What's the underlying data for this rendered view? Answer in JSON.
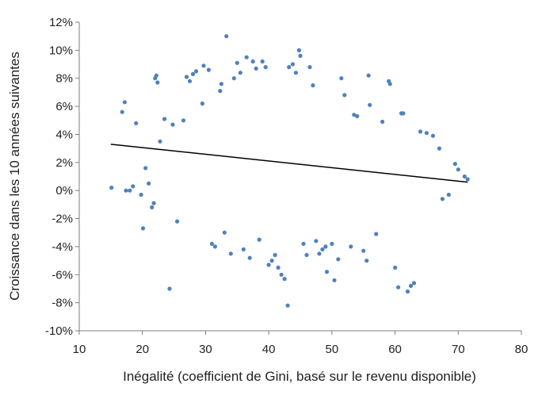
{
  "chart_data": {
    "type": "scatter",
    "title": "",
    "xlabel": "Inégalité (coefficient de Gini, basé sur le revenu disponible)",
    "ylabel": "Croissance dans les 10 années suivantes",
    "xlim": [
      10,
      80
    ],
    "ylim": [
      -10,
      12
    ],
    "x_ticks": [
      10,
      20,
      30,
      40,
      50,
      60,
      70,
      80
    ],
    "y_ticks": [
      -10,
      -8,
      -6,
      -4,
      -2,
      0,
      2,
      4,
      6,
      8,
      10,
      12
    ],
    "y_tick_labels": [
      "-10%",
      "-8%",
      "-6%",
      "-4%",
      "-2%",
      "0%",
      "2%",
      "4%",
      "6%",
      "8%",
      "10%",
      "12%"
    ],
    "grid": false,
    "legend": "none",
    "series": [
      {
        "color": "#4F81BD",
        "points": [
          [
            15.1,
            0.2
          ],
          [
            16.8,
            5.6
          ],
          [
            17.2,
            6.3
          ],
          [
            17.4,
            0.0
          ],
          [
            18.0,
            0.0
          ],
          [
            18.5,
            0.3
          ],
          [
            19.0,
            4.8
          ],
          [
            19.8,
            -0.3
          ],
          [
            20.1,
            -2.7
          ],
          [
            20.5,
            1.6
          ],
          [
            21.0,
            0.5
          ],
          [
            21.5,
            -1.2
          ],
          [
            22.0,
            8.0
          ],
          [
            22.2,
            8.2
          ],
          [
            22.4,
            7.7
          ],
          [
            21.8,
            -0.9
          ],
          [
            22.8,
            3.5
          ],
          [
            23.5,
            5.1
          ],
          [
            24.3,
            -7.0
          ],
          [
            24.8,
            4.7
          ],
          [
            25.5,
            -2.2
          ],
          [
            26.5,
            5.0
          ],
          [
            27.0,
            8.1
          ],
          [
            27.5,
            7.8
          ],
          [
            28.0,
            8.3
          ],
          [
            28.5,
            8.5
          ],
          [
            29.5,
            6.2
          ],
          [
            29.7,
            8.9
          ],
          [
            30.5,
            8.6
          ],
          [
            31.0,
            -3.8
          ],
          [
            31.5,
            -4.0
          ],
          [
            32.3,
            7.1
          ],
          [
            32.5,
            7.6
          ],
          [
            33.0,
            -3.0
          ],
          [
            33.3,
            11.0
          ],
          [
            34.0,
            -4.5
          ],
          [
            34.5,
            8.0
          ],
          [
            35.0,
            9.1
          ],
          [
            35.5,
            8.4
          ],
          [
            36.0,
            -4.2
          ],
          [
            36.5,
            9.5
          ],
          [
            37.0,
            -4.8
          ],
          [
            37.5,
            9.2
          ],
          [
            38.0,
            8.7
          ],
          [
            38.5,
            -3.5
          ],
          [
            39.0,
            9.2
          ],
          [
            39.5,
            8.8
          ],
          [
            40.0,
            -5.3
          ],
          [
            40.5,
            -5.0
          ],
          [
            41.0,
            -4.6
          ],
          [
            41.5,
            -5.5
          ],
          [
            42.0,
            -6.0
          ],
          [
            42.5,
            -6.3
          ],
          [
            43.0,
            -8.2
          ],
          [
            43.2,
            8.8
          ],
          [
            43.8,
            9.0
          ],
          [
            44.3,
            8.4
          ],
          [
            44.8,
            10.0
          ],
          [
            45.0,
            9.6
          ],
          [
            45.5,
            -3.8
          ],
          [
            46.0,
            -4.6
          ],
          [
            46.5,
            8.8
          ],
          [
            47.0,
            7.5
          ],
          [
            47.5,
            -3.6
          ],
          [
            48.0,
            -4.5
          ],
          [
            48.5,
            -4.2
          ],
          [
            49.0,
            -4.0
          ],
          [
            49.2,
            -5.8
          ],
          [
            50.0,
            -3.8
          ],
          [
            50.4,
            -6.4
          ],
          [
            51.0,
            -4.9
          ],
          [
            51.5,
            8.0
          ],
          [
            52.0,
            6.8
          ],
          [
            53.0,
            -4.0
          ],
          [
            53.5,
            5.4
          ],
          [
            54.0,
            5.3
          ],
          [
            55.0,
            -4.3
          ],
          [
            55.5,
            -5.0
          ],
          [
            55.8,
            8.2
          ],
          [
            56.0,
            6.1
          ],
          [
            57.0,
            -3.1
          ],
          [
            58.0,
            4.9
          ],
          [
            59.0,
            7.8
          ],
          [
            59.2,
            7.6
          ],
          [
            60.0,
            -5.5
          ],
          [
            60.5,
            -6.9
          ],
          [
            61.0,
            5.5
          ],
          [
            61.3,
            5.5
          ],
          [
            62.0,
            -7.2
          ],
          [
            62.5,
            -6.8
          ],
          [
            63.0,
            -6.6
          ],
          [
            64.0,
            4.2
          ],
          [
            65.0,
            4.1
          ],
          [
            66.0,
            3.9
          ],
          [
            67.0,
            3.0
          ],
          [
            67.5,
            -0.6
          ],
          [
            68.5,
            -0.3
          ],
          [
            69.5,
            1.9
          ],
          [
            70.0,
            1.5
          ],
          [
            71.0,
            1.0
          ],
          [
            71.5,
            0.8
          ]
        ]
      }
    ],
    "trendline": {
      "color": "#000000",
      "x": [
        15,
        71.5
      ],
      "y": [
        3.3,
        0.6
      ]
    }
  }
}
